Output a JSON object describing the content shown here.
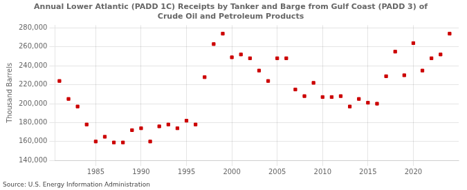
{
  "chart_data": {
    "type": "scatter",
    "title": [
      "Annual Lower Atlantic (PADD 1C) Receipts by Tanker and Barge from Gulf Coast (PADD 3) of",
      "Crude Oil and Petroleum Products"
    ],
    "y_label": "Thousand Barrels",
    "annotation": "Source: U.S. Energy Information Administration",
    "x": [
      1981,
      1982,
      1983,
      1984,
      1985,
      1986,
      1987,
      1988,
      1989,
      1990,
      1991,
      1992,
      1993,
      1994,
      1995,
      1996,
      1997,
      1998,
      1999,
      2000,
      2001,
      2002,
      2003,
      2004,
      2005,
      2006,
      2007,
      2008,
      2009,
      2010,
      2011,
      2012,
      2013,
      2014,
      2015,
      2016,
      2017,
      2018,
      2019,
      2020,
      2021,
      2022,
      2023,
      2024
    ],
    "values": [
      224000,
      205000,
      197000,
      178000,
      160000,
      165000,
      159000,
      159000,
      172000,
      174000,
      160000,
      176000,
      178000,
      174000,
      182000,
      178000,
      228000,
      263000,
      274000,
      249000,
      252000,
      248000,
      235000,
      224000,
      248000,
      248000,
      215000,
      208000,
      222000,
      207000,
      207000,
      208000,
      197000,
      205000,
      201000,
      200000,
      229000,
      255000,
      230000,
      264000,
      235000,
      248000,
      252000,
      274000
    ],
    "color": "#cc0000",
    "marker": "square",
    "xlim": [
      1980.5,
      2025
    ],
    "xticks": [
      1985,
      1990,
      1995,
      2000,
      2005,
      2010,
      2015,
      2020
    ],
    "ylim": [
      140000,
      283000
    ],
    "yticks": [
      {
        "value": 140000,
        "label": "140,000"
      },
      {
        "value": 160000,
        "label": "160,000"
      },
      {
        "value": 180000,
        "label": "180,000"
      },
      {
        "value": 200000,
        "label": "200,000"
      },
      {
        "value": 220000,
        "label": "220,000"
      },
      {
        "value": 240000,
        "label": "240,000"
      },
      {
        "value": 260000,
        "label": "260,000"
      },
      {
        "value": 280000,
        "label": "280,000"
      }
    ],
    "grid": true
  }
}
